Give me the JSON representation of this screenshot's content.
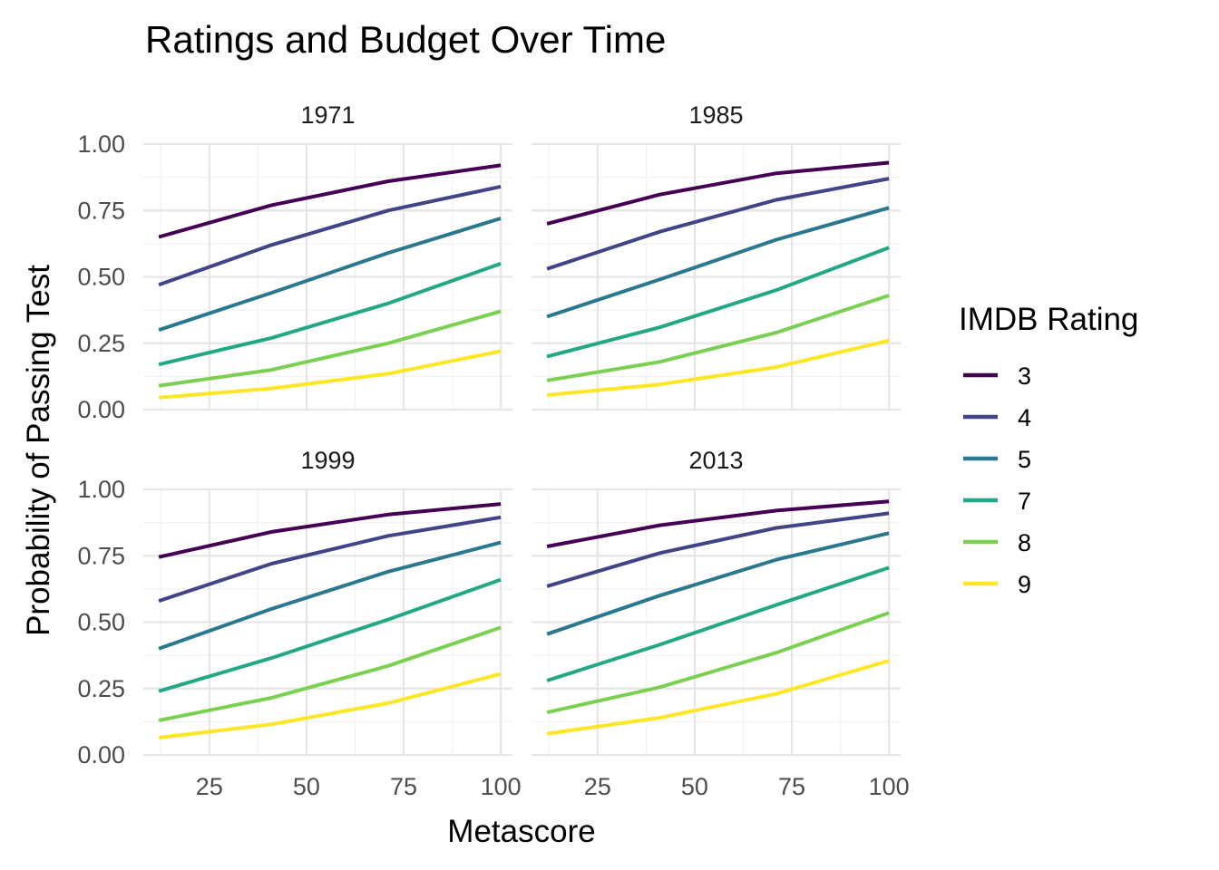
{
  "chart_data": {
    "type": "line",
    "title": "Ratings and Budget Over Time",
    "xlabel": "Metascore",
    "ylabel": "Probability of Passing Test",
    "xlim": [
      8,
      103
    ],
    "ylim": [
      0,
      1
    ],
    "x_ticks": [
      25,
      50,
      75,
      100
    ],
    "y_ticks": [
      "0.00",
      "0.25",
      "0.50",
      "0.75",
      "1.00"
    ],
    "grid": true,
    "legend": {
      "title": "IMDB Rating",
      "position": "right",
      "entries": [
        "3",
        "4",
        "5",
        "7",
        "8",
        "9"
      ]
    },
    "colors": {
      "3": "#440154",
      "4": "#414487",
      "5": "#2A788E",
      "7": "#22A884",
      "8": "#7AD151",
      "9": "#FDE725"
    },
    "x": [
      12,
      41,
      71,
      100
    ],
    "panels": [
      {
        "label": "1971",
        "series": [
          {
            "name": "3",
            "values": [
              0.65,
              0.77,
              0.86,
              0.92
            ]
          },
          {
            "name": "4",
            "values": [
              0.47,
              0.62,
              0.75,
              0.84
            ]
          },
          {
            "name": "5",
            "values": [
              0.3,
              0.44,
              0.59,
              0.72
            ]
          },
          {
            "name": "7",
            "values": [
              0.17,
              0.27,
              0.4,
              0.55
            ]
          },
          {
            "name": "8",
            "values": [
              0.09,
              0.15,
              0.25,
              0.37
            ]
          },
          {
            "name": "9",
            "values": [
              0.045,
              0.08,
              0.135,
              0.22
            ]
          }
        ]
      },
      {
        "label": "1985",
        "series": [
          {
            "name": "3",
            "values": [
              0.7,
              0.81,
              0.89,
              0.93
            ]
          },
          {
            "name": "4",
            "values": [
              0.53,
              0.67,
              0.79,
              0.87
            ]
          },
          {
            "name": "5",
            "values": [
              0.35,
              0.49,
              0.64,
              0.76
            ]
          },
          {
            "name": "7",
            "values": [
              0.2,
              0.31,
              0.45,
              0.61
            ]
          },
          {
            "name": "8",
            "values": [
              0.11,
              0.18,
              0.29,
              0.43
            ]
          },
          {
            "name": "9",
            "values": [
              0.055,
              0.095,
              0.16,
              0.26
            ]
          }
        ]
      },
      {
        "label": "1999",
        "series": [
          {
            "name": "3",
            "values": [
              0.745,
              0.84,
              0.905,
              0.945
            ]
          },
          {
            "name": "4",
            "values": [
              0.58,
              0.72,
              0.825,
              0.895
            ]
          },
          {
            "name": "5",
            "values": [
              0.4,
              0.55,
              0.69,
              0.8
            ]
          },
          {
            "name": "7",
            "values": [
              0.24,
              0.365,
              0.51,
              0.66
            ]
          },
          {
            "name": "8",
            "values": [
              0.13,
              0.215,
              0.335,
              0.48
            ]
          },
          {
            "name": "9",
            "values": [
              0.065,
              0.115,
              0.195,
              0.305
            ]
          }
        ]
      },
      {
        "label": "2013",
        "series": [
          {
            "name": "3",
            "values": [
              0.785,
              0.865,
              0.92,
              0.955
            ]
          },
          {
            "name": "4",
            "values": [
              0.635,
              0.76,
              0.855,
              0.91
            ]
          },
          {
            "name": "5",
            "values": [
              0.455,
              0.6,
              0.735,
              0.835
            ]
          },
          {
            "name": "7",
            "values": [
              0.28,
              0.415,
              0.565,
              0.705
            ]
          },
          {
            "name": "8",
            "values": [
              0.16,
              0.255,
              0.385,
              0.535
            ]
          },
          {
            "name": "9",
            "values": [
              0.08,
              0.14,
              0.23,
              0.355
            ]
          }
        ]
      }
    ]
  }
}
